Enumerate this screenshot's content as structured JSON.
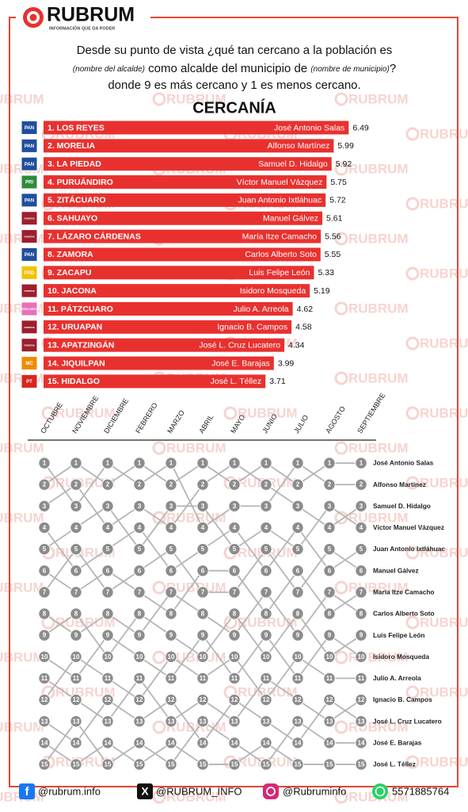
{
  "header": {
    "brand": "RUBRUM",
    "tagline": "INFORMACIÓN QUE DA PODER"
  },
  "watermark": "RUBRUM",
  "question": {
    "line1": "Desde su punto de vista ¿qué tan cercano a la población es",
    "line2_a": "(nombre del alcalde)",
    "line2_b": " como alcalde del municipio de ",
    "line2_c": "(nombre de municipio)",
    "line2_d": "?",
    "line3": "donde 9 es más cercano y 1 es menos cercano."
  },
  "chart_data": [
    {
      "type": "bar",
      "title": "CERCANÍA",
      "color": "#e8312f",
      "categories": [
        "1. LOS REYES",
        "2. MORELIA",
        "3. LA PIEDAD",
        "4. PURUÁNDIRO",
        "5. ZITÁCUARO",
        "6. SAHUAYO",
        "7. LÁZARO CÁRDENAS",
        "8. ZAMORA",
        "9. ZACAPU",
        "10. JACONA",
        "11. PÁTZCUARO",
        "12. URUAPAN",
        "13. APATZINGÁN",
        "14. JIQUILPAN",
        "15. HIDALGO"
      ],
      "names": [
        "José Antonio Salas",
        "Alfonso Martínez",
        "Samuel D. Hidalgo",
        "Víctor Manuel Vázquez",
        "Juan Antonio Ixtláhuac",
        "Manuel Gálvez",
        "María Itze Camacho",
        "Carlos Alberto Soto",
        "Luis Felipe León",
        "Isidoro Mosqueda",
        "Julio A. Arreola",
        "Ignacio B. Campos",
        "José L. Cruz Lucatero",
        "José E. Barajas",
        "José L. Téllez"
      ],
      "parties": [
        "PAN",
        "PAN",
        "PAN",
        "PRI",
        "PAN",
        "morena",
        "morena",
        "PAN",
        "PRD",
        "morena",
        "FUERZA MÉXICO",
        "morena",
        "morena",
        "MC",
        "PT"
      ],
      "party_colors": [
        "#1f4e9c",
        "#1f4e9c",
        "#1f4e9c",
        "#2e8b3a",
        "#1f4e9c",
        "#9c1f2e",
        "#9c1f2e",
        "#1f4e9c",
        "#f2c200",
        "#9c1f2e",
        "#e870b8",
        "#9c1f2e",
        "#9c1f2e",
        "#f08a00",
        "#d7261e"
      ],
      "values": [
        6.49,
        5.99,
        5.92,
        5.75,
        5.72,
        5.61,
        5.56,
        5.55,
        5.33,
        5.19,
        4.62,
        4.58,
        4.34,
        3.99,
        3.71
      ]
    },
    {
      "type": "bump",
      "color": "#b5b5b5",
      "node_color": "#8c8c8c",
      "categories": [
        "OCTUBRE",
        "NOVIEMBRE",
        "DICIEMBRE",
        "FEBRERO",
        "MARZO",
        "ABRIL",
        "MAYO",
        "JUNIO",
        "JULIO",
        "AGOSTO",
        "SEPTIEMBRE"
      ],
      "rank_labels": [
        1,
        2,
        3,
        4,
        5,
        6,
        7,
        8,
        9,
        10,
        11,
        12,
        13,
        14,
        15
      ],
      "series": [
        {
          "name": "José Antonio Salas",
          "values": [
            2,
            1,
            2,
            1,
            2,
            1,
            2,
            1,
            2,
            1,
            1
          ]
        },
        {
          "name": "Alfonso Martínez",
          "values": [
            1,
            3,
            1,
            2,
            1,
            4,
            3,
            3,
            1,
            2,
            2
          ]
        },
        {
          "name": "Samuel D. Hidalgo",
          "values": [
            3,
            2,
            4,
            3,
            4,
            2,
            1,
            2,
            3,
            4,
            3
          ]
        },
        {
          "name": "Víctor Manuel Vázquez",
          "values": [
            5,
            4,
            3,
            5,
            3,
            3,
            5,
            4,
            5,
            3,
            4
          ]
        },
        {
          "name": "Juan Antonio Ixtláhuac",
          "values": [
            4,
            6,
            5,
            4,
            6,
            5,
            4,
            6,
            4,
            6,
            5
          ]
        },
        {
          "name": "Manuel Gálvez",
          "values": [
            7,
            5,
            7,
            6,
            5,
            7,
            7,
            5,
            7,
            5,
            6
          ]
        },
        {
          "name": "María Itze Camacho",
          "values": [
            6,
            7,
            6,
            7,
            8,
            6,
            6,
            8,
            6,
            8,
            7
          ]
        },
        {
          "name": "Carlos Alberto Soto",
          "values": [
            8,
            9,
            8,
            9,
            7,
            8,
            9,
            7,
            9,
            7,
            8
          ]
        },
        {
          "name": "Luis Felipe León",
          "values": [
            9,
            8,
            10,
            8,
            9,
            10,
            8,
            10,
            8,
            10,
            9
          ]
        },
        {
          "name": "Isidoro Mosqueda",
          "values": [
            10,
            11,
            9,
            10,
            11,
            9,
            11,
            9,
            11,
            9,
            10
          ]
        },
        {
          "name": "Julio A. Arreola",
          "values": [
            12,
            10,
            11,
            12,
            10,
            11,
            10,
            12,
            10,
            11,
            11
          ]
        },
        {
          "name": "Ignacio B. Campos",
          "values": [
            11,
            12,
            13,
            11,
            13,
            12,
            13,
            11,
            12,
            13,
            12
          ]
        },
        {
          "name": "José L. Cruz Lucatero",
          "values": [
            13,
            14,
            12,
            13,
            12,
            14,
            12,
            13,
            14,
            12,
            13
          ]
        },
        {
          "name": "José E. Barajas",
          "values": [
            15,
            13,
            15,
            14,
            15,
            13,
            14,
            15,
            13,
            14,
            14
          ]
        },
        {
          "name": "José L. Téllez",
          "values": [
            14,
            15,
            14,
            15,
            14,
            15,
            15,
            14,
            15,
            15,
            15
          ]
        }
      ]
    }
  ],
  "footer": {
    "facebook": "@rubrum.info",
    "x": "@RUBRUM_INFO",
    "instagram": "@Rubruminfo",
    "whatsapp": "5571885764"
  }
}
